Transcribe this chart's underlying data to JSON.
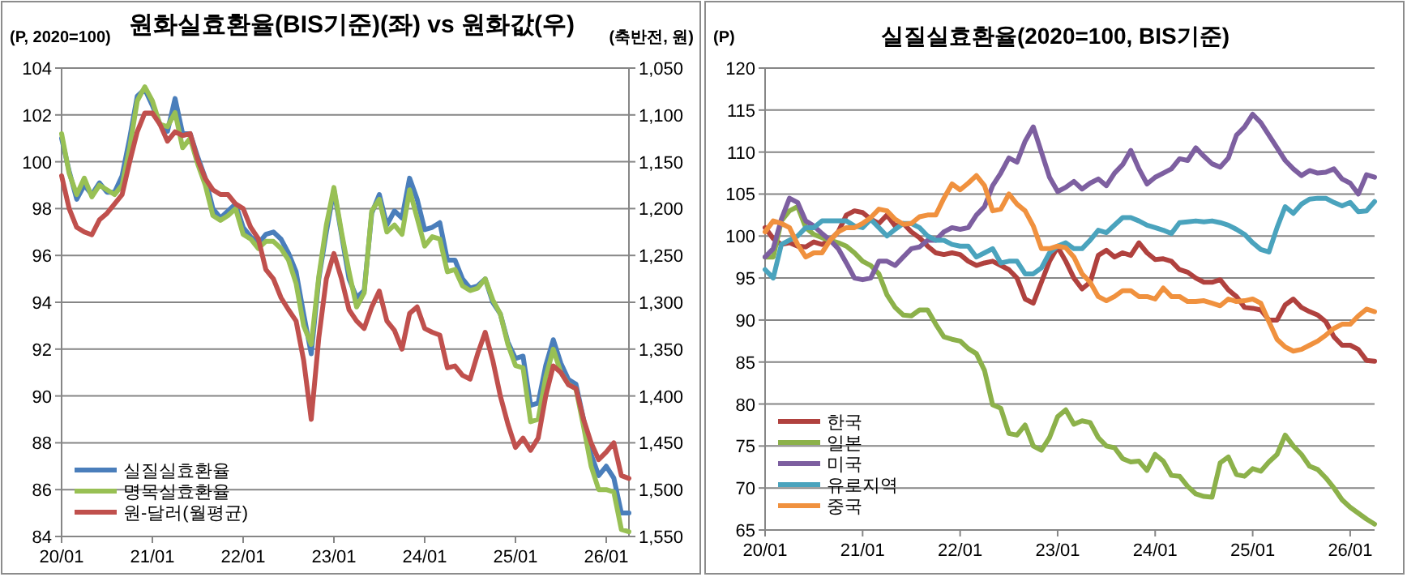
{
  "chart_data": [
    {
      "type": "line",
      "title": "원화실효환율(BIS기준)(좌) vs 원화값(우)",
      "ylabel": "(P, 2020=100)",
      "y2label": "(축반전, 원)",
      "x": [
        "2020-01",
        "2020-02",
        "2020-03",
        "2020-04",
        "2020-05",
        "2020-06",
        "2020-07",
        "2020-08",
        "2020-09",
        "2020-10",
        "2020-11",
        "2020-12",
        "2021-01",
        "2021-02",
        "2021-03",
        "2021-04",
        "2021-05",
        "2021-06",
        "2021-07",
        "2021-08",
        "2021-09",
        "2021-10",
        "2021-11",
        "2021-12",
        "2022-01",
        "2022-02",
        "2022-03",
        "2022-04",
        "2022-05",
        "2022-06",
        "2022-07",
        "2022-08",
        "2022-09",
        "2022-10",
        "2022-11",
        "2022-12",
        "2023-01",
        "2023-02",
        "2023-03",
        "2023-04",
        "2023-05",
        "2023-06",
        "2023-07",
        "2023-08",
        "2023-09",
        "2023-10",
        "2023-11",
        "2023-12",
        "2024-01",
        "2024-02",
        "2024-03",
        "2024-04",
        "2024-05",
        "2024-06",
        "2024-07",
        "2024-08",
        "2024-09",
        "2024-10",
        "2024-11",
        "2024-12",
        "2025-01",
        "2025-02",
        "2025-03",
        "2025-04",
        "2025-05",
        "2025-06",
        "2025-07",
        "2025-08",
        "2025-09",
        "2025-10",
        "2025-11",
        "2025-12",
        "2026-01",
        "2026-02",
        "2026-03",
        "2026-04"
      ],
      "xlim": [
        "2020-01",
        "2026-04"
      ],
      "xticks": [
        {
          "value": "2020-01",
          "label": "20/01"
        },
        {
          "value": "2021-01",
          "label": "21/01"
        },
        {
          "value": "2022-01",
          "label": "22/01"
        },
        {
          "value": "2023-01",
          "label": "23/01"
        },
        {
          "value": "2024-01",
          "label": "24/01"
        },
        {
          "value": "2025-01",
          "label": "25/01"
        },
        {
          "value": "2026-01",
          "label": "26/01"
        }
      ],
      "ylim": [
        84,
        104
      ],
      "yticks": [
        84,
        86,
        88,
        90,
        92,
        94,
        96,
        98,
        100,
        102,
        104
      ],
      "y2lim": [
        1550,
        1050
      ],
      "y2ticks": [
        {
          "value": 1050,
          "label": "1,050"
        },
        {
          "value": 1100,
          "label": "1,100"
        },
        {
          "value": 1150,
          "label": "1,150"
        },
        {
          "value": 1200,
          "label": "1,200"
        },
        {
          "value": 1250,
          "label": "1,250"
        },
        {
          "value": 1300,
          "label": "1,300"
        },
        {
          "value": 1350,
          "label": "1,350"
        },
        {
          "value": 1400,
          "label": "1,400"
        },
        {
          "value": 1450,
          "label": "1,450"
        },
        {
          "value": 1500,
          "label": "1,500"
        },
        {
          "value": 1550,
          "label": "1,550"
        }
      ],
      "grid": "y",
      "legend": "bottom left",
      "series": [
        {
          "name": "실질실효환율",
          "color": "#4a7ebb",
          "values": [
            101.0,
            99.6,
            98.4,
            99.0,
            98.6,
            99.1,
            98.7,
            98.7,
            99.4,
            101.0,
            102.8,
            103.1,
            102.4,
            101.6,
            101.3,
            102.7,
            101.2,
            101.2,
            100.2,
            99.3,
            98.0,
            97.6,
            97.9,
            98.2,
            97.2,
            96.8,
            96.5,
            96.9,
            97.0,
            96.7,
            96.1,
            95.3,
            93.5,
            91.8,
            95.0,
            97.0,
            98.8,
            96.9,
            95.0,
            94.2,
            94.5,
            97.8,
            98.6,
            97.3,
            97.9,
            97.6,
            99.3,
            98.4,
            97.1,
            97.2,
            97.4,
            95.8,
            95.8,
            95.0,
            94.6,
            94.7,
            95.0,
            94.0,
            93.5,
            92.3,
            91.6,
            91.7,
            89.6,
            89.7,
            91.3,
            92.4,
            91.4,
            90.7,
            90.5,
            89.0,
            87.5,
            86.6,
            87.0,
            86.5,
            85.0,
            85.0
          ]
        },
        {
          "name": "명목실효환율",
          "color": "#98c054",
          "values": [
            101.2,
            99.5,
            98.6,
            99.3,
            98.5,
            99.0,
            98.8,
            98.6,
            99.0,
            100.6,
            102.6,
            103.2,
            102.6,
            101.6,
            101.5,
            102.1,
            100.6,
            101.0,
            99.9,
            99.0,
            97.7,
            97.5,
            97.7,
            98.0,
            96.9,
            96.7,
            96.3,
            96.6,
            96.6,
            96.3,
            95.8,
            94.8,
            93.0,
            92.2,
            95.1,
            97.3,
            98.9,
            97.0,
            95.3,
            93.8,
            94.4,
            97.9,
            98.4,
            97.0,
            97.3,
            96.9,
            98.8,
            97.6,
            96.4,
            96.8,
            96.7,
            95.3,
            95.4,
            94.7,
            94.5,
            94.6,
            95.0,
            94.1,
            93.5,
            92.2,
            91.3,
            91.2,
            88.9,
            89.0,
            90.8,
            92.0,
            91.0,
            90.5,
            90.3,
            88.7,
            87.0,
            86.0,
            86.0,
            85.9,
            84.3,
            84.2
          ]
        },
        {
          "name": "원-달러(월평균)",
          "color": "#c0504d",
          "axis": "y2",
          "values": [
            1165,
            1200,
            1220,
            1225,
            1228,
            1212,
            1205,
            1195,
            1185,
            1150,
            1118,
            1098,
            1098,
            1110,
            1128,
            1118,
            1122,
            1120,
            1148,
            1168,
            1180,
            1185,
            1185,
            1195,
            1200,
            1220,
            1232,
            1265,
            1275,
            1295,
            1308,
            1320,
            1362,
            1425,
            1338,
            1275,
            1248,
            1275,
            1308,
            1320,
            1328,
            1305,
            1288,
            1320,
            1330,
            1350,
            1312,
            1305,
            1328,
            1332,
            1335,
            1370,
            1368,
            1378,
            1382,
            1355,
            1332,
            1362,
            1400,
            1430,
            1455,
            1445,
            1458,
            1445,
            1400,
            1368,
            1375,
            1388,
            1392,
            1425,
            1450,
            1468,
            1460,
            1450,
            1485,
            1488
          ]
        }
      ]
    },
    {
      "type": "line",
      "title": "실질실효환율(2020=100, BIS기준)",
      "ylabel": "(P)",
      "x": [
        "2020-01",
        "2020-02",
        "2020-03",
        "2020-04",
        "2020-05",
        "2020-06",
        "2020-07",
        "2020-08",
        "2020-09",
        "2020-10",
        "2020-11",
        "2020-12",
        "2021-01",
        "2021-02",
        "2021-03",
        "2021-04",
        "2021-05",
        "2021-06",
        "2021-07",
        "2021-08",
        "2021-09",
        "2021-10",
        "2021-11",
        "2021-12",
        "2022-01",
        "2022-02",
        "2022-03",
        "2022-04",
        "2022-05",
        "2022-06",
        "2022-07",
        "2022-08",
        "2022-09",
        "2022-10",
        "2022-11",
        "2022-12",
        "2023-01",
        "2023-02",
        "2023-03",
        "2023-04",
        "2023-05",
        "2023-06",
        "2023-07",
        "2023-08",
        "2023-09",
        "2023-10",
        "2023-11",
        "2023-12",
        "2024-01",
        "2024-02",
        "2024-03",
        "2024-04",
        "2024-05",
        "2024-06",
        "2024-07",
        "2024-08",
        "2024-09",
        "2024-10",
        "2024-11",
        "2024-12",
        "2025-01",
        "2025-02",
        "2025-03",
        "2025-04",
        "2025-05",
        "2025-06",
        "2025-07",
        "2025-08",
        "2025-09",
        "2025-10",
        "2025-11",
        "2025-12",
        "2026-01",
        "2026-02",
        "2026-03",
        "2026-04"
      ],
      "xlim": [
        "2020-01",
        "2026-04"
      ],
      "xticks": [
        {
          "value": "2020-01",
          "label": "20/01"
        },
        {
          "value": "2021-01",
          "label": "21/01"
        },
        {
          "value": "2022-01",
          "label": "22/01"
        },
        {
          "value": "2023-01",
          "label": "23/01"
        },
        {
          "value": "2024-01",
          "label": "24/01"
        },
        {
          "value": "2025-01",
          "label": "25/01"
        },
        {
          "value": "2026-01",
          "label": "26/01"
        }
      ],
      "ylim": [
        65,
        120
      ],
      "yticks": [
        65,
        70,
        75,
        80,
        85,
        90,
        95,
        100,
        105,
        110,
        115,
        120
      ],
      "grid": "y",
      "legend": "bottom left",
      "series": [
        {
          "name": "한국",
          "color": "#b0413e",
          "values": [
            101.0,
            99.7,
            99.0,
            99.2,
            98.8,
            98.7,
            99.3,
            99.0,
            99.5,
            100.5,
            102.5,
            103.0,
            102.8,
            102.0,
            101.5,
            102.5,
            101.2,
            101.5,
            100.5,
            99.8,
            98.8,
            98.0,
            97.8,
            98.0,
            97.8,
            97.0,
            96.5,
            96.8,
            97.0,
            96.5,
            96.0,
            95.0,
            92.5,
            92.0,
            94.5,
            97.0,
            98.7,
            97.0,
            95.0,
            93.7,
            94.5,
            97.7,
            98.3,
            97.5,
            98.0,
            97.7,
            99.2,
            98.0,
            97.2,
            97.3,
            97.0,
            96.0,
            95.7,
            95.0,
            94.5,
            94.5,
            94.8,
            93.6,
            92.8,
            91.5,
            91.4,
            91.2,
            90.0,
            90.0,
            91.8,
            92.5,
            91.5,
            91.0,
            90.6,
            89.8,
            88.0,
            87.0,
            87.0,
            86.5,
            85.2,
            85.1
          ]
        },
        {
          "name": "일본",
          "color": "#8cb14a",
          "values": [
            97.5,
            97.5,
            101.8,
            103.0,
            103.5,
            101.0,
            100.2,
            99.8,
            99.5,
            99.2,
            98.8,
            98.0,
            97.0,
            96.5,
            95.5,
            93.0,
            91.5,
            90.6,
            90.5,
            91.2,
            91.2,
            89.5,
            88.0,
            87.7,
            87.5,
            86.6,
            86.0,
            84.0,
            79.9,
            79.5,
            76.5,
            76.3,
            77.5,
            75.0,
            74.5,
            76.0,
            78.5,
            79.3,
            77.6,
            78.0,
            77.8,
            76.0,
            75.0,
            74.8,
            73.5,
            73.1,
            73.2,
            72.1,
            74.0,
            73.2,
            71.5,
            71.4,
            70.2,
            69.3,
            69.0,
            68.9,
            73.0,
            73.7,
            71.6,
            71.4,
            72.3,
            72.0,
            73.1,
            74.0,
            76.3,
            75.0,
            74.0,
            72.6,
            72.2,
            71.2,
            70.0,
            68.6,
            67.7,
            67.0,
            66.3,
            65.7
          ]
        },
        {
          "name": "미국",
          "color": "#7d5fa0",
          "values": [
            97.5,
            98.5,
            102.0,
            104.5,
            104.0,
            101.8,
            101.2,
            100.3,
            99.5,
            98.5,
            96.8,
            95.0,
            94.8,
            95.0,
            97.0,
            97.0,
            96.5,
            97.5,
            98.5,
            98.7,
            99.5,
            99.5,
            100.5,
            101.0,
            100.8,
            101.0,
            102.5,
            103.5,
            106.0,
            107.5,
            109.3,
            108.8,
            111.3,
            113.0,
            110.0,
            107.0,
            105.3,
            105.8,
            106.5,
            105.6,
            106.3,
            106.8,
            106.0,
            107.5,
            108.5,
            110.2,
            108.0,
            106.2,
            107.0,
            107.5,
            108.0,
            109.2,
            109.0,
            110.5,
            109.5,
            108.6,
            108.2,
            109.3,
            112.0,
            113.0,
            114.5,
            113.5,
            112.0,
            110.5,
            109.0,
            108.0,
            107.2,
            107.8,
            107.5,
            107.6,
            108.0,
            106.8,
            106.3,
            105.0,
            107.3,
            107.0
          ]
        },
        {
          "name": "유로지역",
          "color": "#4aa3bd",
          "values": [
            96.0,
            95.0,
            99.0,
            99.5,
            100.0,
            101.0,
            101.0,
            101.8,
            101.8,
            101.8,
            101.8,
            101.2,
            101.0,
            102.0,
            101.0,
            100.0,
            100.8,
            101.5,
            101.5,
            101.0,
            100.0,
            99.5,
            99.5,
            99.0,
            98.8,
            98.8,
            97.5,
            98.0,
            98.5,
            96.8,
            97.0,
            97.0,
            95.5,
            95.5,
            96.2,
            98.0,
            98.8,
            99.2,
            98.5,
            98.5,
            99.5,
            100.7,
            100.4,
            101.3,
            102.2,
            102.2,
            101.8,
            101.3,
            101.0,
            100.7,
            100.3,
            101.6,
            101.7,
            101.8,
            101.7,
            101.8,
            101.6,
            101.3,
            100.8,
            100.2,
            99.2,
            98.4,
            98.1,
            101.0,
            103.5,
            102.7,
            103.8,
            104.4,
            104.5,
            104.5,
            104.0,
            103.6,
            104.0,
            102.9,
            103.0,
            104.1
          ]
        },
        {
          "name": "중국",
          "color": "#f0913e",
          "values": [
            100.5,
            101.8,
            101.5,
            101.0,
            99.0,
            97.5,
            98.0,
            98.0,
            99.5,
            100.5,
            101.0,
            101.0,
            101.5,
            102.2,
            103.2,
            103.0,
            102.0,
            101.4,
            101.5,
            102.3,
            102.5,
            102.5,
            104.5,
            106.2,
            105.5,
            106.3,
            107.2,
            106.0,
            103.0,
            103.2,
            105.0,
            103.8,
            103.0,
            101.2,
            98.5,
            98.5,
            98.8,
            98.6,
            97.5,
            95.5,
            94.5,
            92.8,
            92.3,
            92.8,
            93.5,
            93.5,
            92.8,
            92.8,
            92.5,
            93.8,
            92.8,
            92.8,
            92.2,
            92.2,
            92.3,
            92.0,
            91.7,
            92.5,
            92.2,
            92.3,
            92.5,
            92.0,
            89.8,
            87.7,
            86.8,
            86.3,
            86.5,
            87.0,
            87.5,
            88.2,
            89.0,
            89.5,
            89.5,
            90.5,
            91.3,
            91.0
          ]
        }
      ]
    }
  ]
}
